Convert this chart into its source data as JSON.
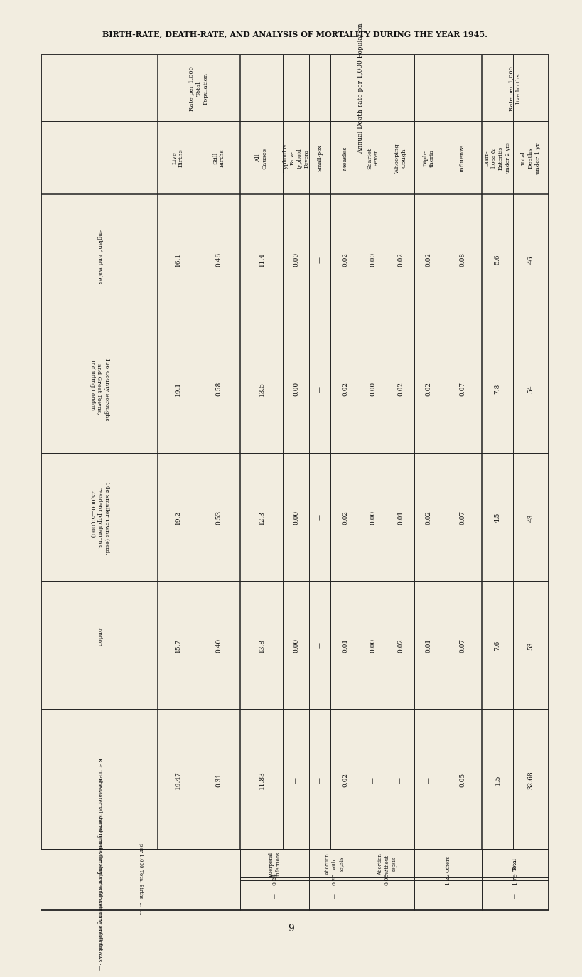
{
  "title": "BIRTH-RATE, DEATH-RATE, AND ANALYSIS OF MORTALITY DURING THE YEAR 1945.",
  "bg_color": "#f2ede0",
  "page_number": "9",
  "row_labels": [
    "England and Wales ...",
    "126 County Boroughs\nand Great Towns,\nincluding London ...",
    "148 Smaller Towns (estd.\nresident populations,\n25,000—50,000). ...",
    "London ... ... ...",
    "KETTERING ..."
  ],
  "col_headers_group1_label": "Rate per 1,000\nTotal\nPopulation",
  "col_headers_group1": [
    "Live\nBirths",
    "Still\nBirths"
  ],
  "col_headers_group2_label": "Annual Death-rate per 1,000 Population",
  "col_headers_group2": [
    "All\nCauses",
    "Typhoid &\nPara-\ntyphoid\nFevera",
    "Small-pox",
    "Measles",
    "Scarlet\nFever",
    "Whooping\nCough",
    "Diph-\ntheria",
    "Influenza"
  ],
  "col_headers_group3_label": "Rate per 1,000\nlive births",
  "col_headers_group3": [
    "Diarr-\nhoea &\nEnteritis\nunder 2 yrs",
    "Total\nDeaths\nunder 1 yr"
  ],
  "data": [
    [
      "16.1",
      "0.46",
      "11.4",
      "0.00",
      "—",
      "0.02",
      "0.00",
      "0.02",
      "0.02",
      "0.08",
      "5.6",
      "46"
    ],
    [
      "19.1",
      "0.58",
      "13.5",
      "0.00",
      "—",
      "0.02",
      "0.00",
      "0.02",
      "0.02",
      "0.07",
      "7.8",
      "54"
    ],
    [
      "19.2",
      "0.53",
      "12.3",
      "0.00",
      "—",
      "0.02",
      "0.00",
      "0.01",
      "0.02",
      "0.07",
      "4.5",
      "43"
    ],
    [
      "15.7",
      "0.40",
      "13.8",
      "0.00",
      "—",
      "0.01",
      "0.00",
      "0.02",
      "0.01",
      "0.07",
      "7.6",
      "53"
    ],
    [
      "19.47",
      "0.31",
      "11.83",
      "—",
      "—",
      "0.02",
      "—",
      "—",
      "—",
      "0.05",
      "1.5",
      "32.68"
    ]
  ],
  "maternal_headers": [
    "Puerperal\ninfections",
    "Abortion\nwith\nsepsis",
    "Abortion\nwithout\nsepsis",
    "Others",
    "Total"
  ],
  "maternal_data_eng": [
    "0.24",
    "0.25",
    "0.08",
    "1.22",
    "1.79"
  ],
  "maternal_data_ket": [
    "—",
    "—",
    "—",
    "—",
    "—"
  ],
  "maternal_note1": "The Maternal Mortality rates for England and Wales are as follows :—",
  "maternal_note2": "per 1,000 Total Births  ...  ...",
  "maternal_note2b": "—(per 1,000 live births :",
  "maternal_note3": "The Maternal Mortality rates for Kettering are as follows :—",
  "line_color": "#222222",
  "text_color": "#111111"
}
